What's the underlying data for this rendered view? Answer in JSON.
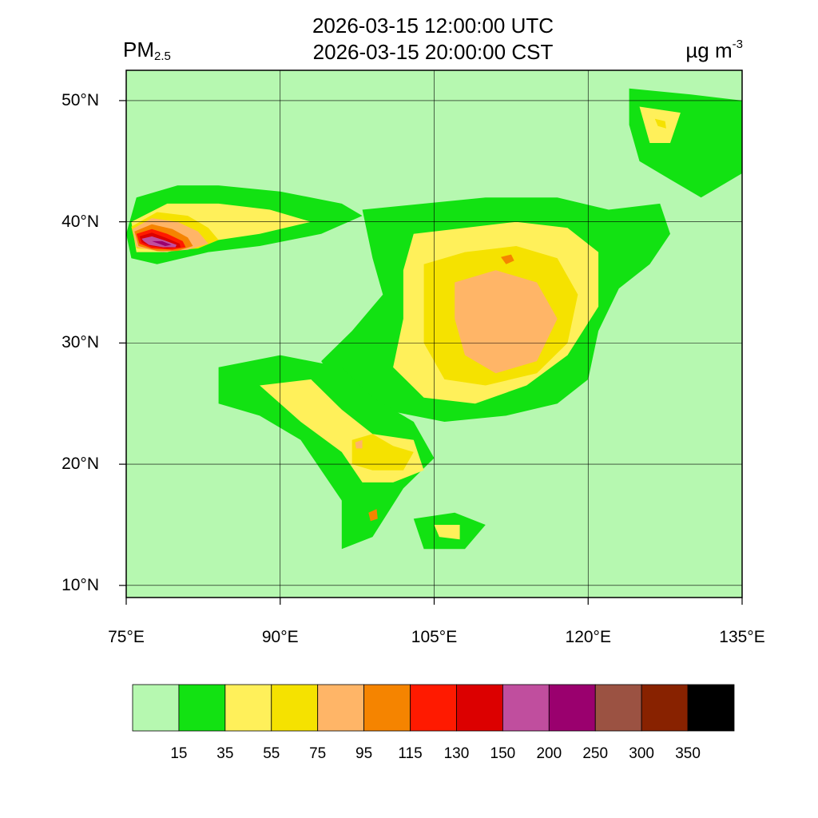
{
  "header": {
    "title_utc": "2026-03-15 12:00:00 UTC",
    "title_cst": "2026-03-15 20:00:00 CST",
    "variable": "PM",
    "variable_subscript": "2.5",
    "unit_base": "µg m",
    "unit_exponent": "-3"
  },
  "map": {
    "lon_range": [
      75,
      135
    ],
    "lat_range": [
      9,
      52.5
    ],
    "lon_ticks": [
      {
        "value": 75,
        "label": "75°E"
      },
      {
        "value": 90,
        "label": "90°E"
      },
      {
        "value": 105,
        "label": "105°E"
      },
      {
        "value": 120,
        "label": "120°E"
      },
      {
        "value": 135,
        "label": "135°E"
      }
    ],
    "lat_ticks": [
      {
        "value": 10,
        "label": "10°N"
      },
      {
        "value": 20,
        "label": "20°N"
      },
      {
        "value": 30,
        "label": "30°N"
      },
      {
        "value": 40,
        "label": "40°N"
      },
      {
        "value": 50,
        "label": "50°N"
      }
    ],
    "background_color": "#b6f8b0",
    "pollution_regions": [
      {
        "name": "tarim-basin",
        "levels": [
          [
            [
              76,
              42
            ],
            [
              80,
              43
            ],
            [
              84,
              43
            ],
            [
              90,
              42.5
            ],
            [
              96,
              41.5
            ],
            [
              98,
              40.5
            ],
            [
              94,
              39
            ],
            [
              88,
              38
            ],
            [
              83,
              37.5
            ],
            [
              78,
              36.5
            ],
            [
              75.5,
              37
            ],
            [
              75,
              39
            ]
          ],
          [
            [
              75.5,
              40
            ],
            [
              79,
              41.5
            ],
            [
              84,
              41.5
            ],
            [
              89,
              41
            ],
            [
              93,
              40
            ],
            [
              88,
              39
            ],
            [
              84,
              38.5
            ],
            [
              79,
              37.5
            ],
            [
              76,
              37.5
            ]
          ],
          [
            [
              75.5,
              39.6
            ],
            [
              78,
              40.8
            ],
            [
              81,
              40.5
            ],
            [
              83,
              39.5
            ],
            [
              84,
              38.5
            ],
            [
              82,
              37.8
            ],
            [
              79,
              37.6
            ],
            [
              76,
              37.8
            ]
          ],
          [
            [
              75.6,
              39.4
            ],
            [
              77.5,
              40.3
            ],
            [
              80,
              40
            ],
            [
              82,
              39.2
            ],
            [
              83,
              38.2
            ],
            [
              81,
              37.7
            ],
            [
              78.5,
              37.5
            ],
            [
              76,
              37.9
            ]
          ],
          [
            [
              75.8,
              39.2
            ],
            [
              77.5,
              39.8
            ],
            [
              79.5,
              39.4
            ],
            [
              81,
              38.7
            ],
            [
              81.5,
              38
            ],
            [
              80,
              37.6
            ],
            [
              78,
              37.6
            ],
            [
              76.2,
              38
            ]
          ],
          [
            [
              76,
              39
            ],
            [
              77.5,
              39.4
            ],
            [
              79,
              39
            ],
            [
              80.5,
              38.4
            ],
            [
              80.8,
              37.9
            ],
            [
              79.5,
              37.7
            ],
            [
              77.5,
              37.8
            ],
            [
              76.3,
              38.2
            ]
          ],
          [
            [
              76.3,
              38.8
            ],
            [
              77.5,
              39.1
            ],
            [
              78.8,
              38.7
            ],
            [
              80.2,
              38.2
            ],
            [
              80.3,
              37.9
            ],
            [
              79,
              37.8
            ],
            [
              77.3,
              38
            ],
            [
              76.5,
              38.3
            ]
          ],
          [
            [
              76.5,
              38.6
            ],
            [
              77.5,
              38.8
            ],
            [
              78.6,
              38.5
            ],
            [
              79.9,
              38.1
            ],
            [
              79.8,
              37.9
            ],
            [
              78.6,
              37.9
            ],
            [
              77.2,
              38.1
            ],
            [
              76.7,
              38.4
            ]
          ],
          [
            [
              77.5,
              38.4
            ],
            [
              78.5,
              38.4
            ],
            [
              79.4,
              38.1
            ],
            [
              78.8,
              38
            ]
          ]
        ]
      },
      {
        "name": "north-china-plain",
        "levels": [
          [
            [
              98,
              41
            ],
            [
              104,
              41.5
            ],
            [
              110,
              42
            ],
            [
              117,
              42
            ],
            [
              122,
              41
            ],
            [
              127,
              41.5
            ],
            [
              128,
              39
            ],
            [
              126,
              36.5
            ],
            [
              123,
              34.5
            ],
            [
              121,
              31
            ],
            [
              120,
              27
            ],
            [
              117,
              25
            ],
            [
              112,
              24
            ],
            [
              106,
              23.5
            ],
            [
              100,
              24.5
            ],
            [
              96,
              26
            ],
            [
              94,
              28.5
            ],
            [
              97,
              31
            ],
            [
              100,
              34
            ],
            [
              99,
              37
            ]
          ],
          [
            [
              103,
              39
            ],
            [
              108,
              39.5
            ],
            [
              113,
              40
            ],
            [
              118,
              39.5
            ],
            [
              121,
              37.5
            ],
            [
              121,
              33
            ],
            [
              118,
              29
            ],
            [
              114,
              26.5
            ],
            [
              109,
              25
            ],
            [
              104,
              25.5
            ],
            [
              101,
              28
            ],
            [
              102,
              32
            ],
            [
              102,
              36
            ]
          ],
          [
            [
              104,
              36.5
            ],
            [
              108,
              37.5
            ],
            [
              113,
              38
            ],
            [
              117,
              37
            ],
            [
              119,
              34
            ],
            [
              118,
              30
            ],
            [
              115,
              27.5
            ],
            [
              110,
              26.5
            ],
            [
              106,
              27
            ],
            [
              104,
              30
            ],
            [
              104,
              33
            ]
          ],
          [
            [
              107,
              35
            ],
            [
              111,
              36
            ],
            [
              115,
              35
            ],
            [
              117,
              32
            ],
            [
              115,
              28.5
            ],
            [
              111,
              27.5
            ],
            [
              108,
              29
            ],
            [
              107,
              32
            ]
          ],
          [
            [
              111.5,
              37.1
            ],
            [
              112.5,
              37.3
            ],
            [
              112.8,
              36.8
            ],
            [
              112,
              36.5
            ]
          ]
        ]
      },
      {
        "name": "southwest-indochina",
        "levels": [
          [
            [
              84,
              28
            ],
            [
              90,
              29
            ],
            [
              96,
              28
            ],
            [
              99,
              25.5
            ],
            [
              103,
              23.5
            ],
            [
              105,
              20.5
            ],
            [
              102,
              18
            ],
            [
              99,
              14
            ],
            [
              96,
              13
            ],
            [
              96,
              17
            ],
            [
              92,
              22
            ],
            [
              88,
              24
            ],
            [
              84,
              25
            ]
          ],
          [
            [
              88,
              26.5
            ],
            [
              93,
              27
            ],
            [
              96,
              24.5
            ],
            [
              99,
              22.5
            ],
            [
              103,
              22
            ],
            [
              104,
              19.5
            ],
            [
              101,
              18.5
            ],
            [
              98,
              18.5
            ],
            [
              96,
              21
            ],
            [
              92,
              23.5
            ]
          ],
          [
            [
              97,
              22
            ],
            [
              99,
              22.5
            ],
            [
              101,
              21.5
            ],
            [
              103,
              21
            ],
            [
              102,
              19.5
            ],
            [
              99,
              19.5
            ],
            [
              97,
              20
            ]
          ],
          [
            [
              97.3,
              21.8
            ],
            [
              98,
              22
            ],
            [
              98,
              21.3
            ],
            [
              97.4,
              21.3
            ]
          ],
          [
            [
              98.6,
              16
            ],
            [
              99.4,
              16.3
            ],
            [
              99.5,
              15.5
            ],
            [
              98.8,
              15.3
            ]
          ]
        ]
      },
      {
        "name": "northeast",
        "levels": [
          [
            [
              124,
              51
            ],
            [
              130,
              50.5
            ],
            [
              135,
              50
            ],
            [
              135,
              44
            ],
            [
              131,
              42
            ],
            [
              128,
              43.5
            ],
            [
              125,
              45
            ],
            [
              124,
              48
            ]
          ],
          [
            [
              125,
              49.5
            ],
            [
              129,
              49
            ],
            [
              128,
              46.5
            ],
            [
              126,
              46.5
            ]
          ],
          [
            [
              126.5,
              48.5
            ],
            [
              127.5,
              48.3
            ],
            [
              127.6,
              47.7
            ],
            [
              126.8,
              47.9
            ]
          ]
        ]
      },
      {
        "name": "south-china-sea",
        "levels": [
          [
            [
              103,
              15.5
            ],
            [
              107,
              16
            ],
            [
              110,
              15
            ],
            [
              108,
              13
            ],
            [
              104,
              13
            ]
          ],
          [
            [
              105,
              15
            ],
            [
              107.5,
              15
            ],
            [
              107.5,
              13.8
            ],
            [
              105.5,
              14
            ]
          ]
        ]
      }
    ]
  },
  "colorbar": {
    "colors": [
      "#b6f8b0",
      "#12e212",
      "#fff05a",
      "#f5e200",
      "#ffb567",
      "#f58400",
      "#ff1a00",
      "#dc0000",
      "#c04e9e",
      "#9a006e",
      "#9b5242",
      "#882200",
      "#000000"
    ],
    "labels": [
      "15",
      "35",
      "55",
      "75",
      "95",
      "115",
      "130",
      "150",
      "200",
      "250",
      "300",
      "350"
    ]
  }
}
